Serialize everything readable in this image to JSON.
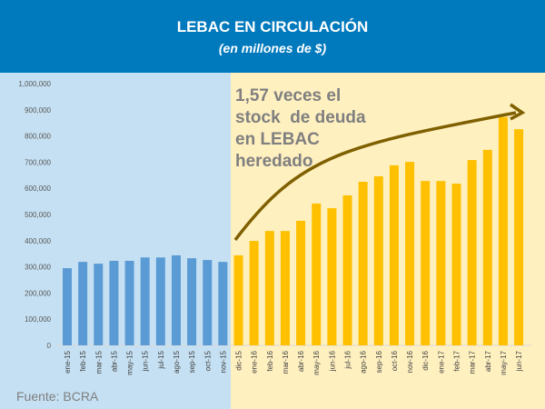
{
  "header": {
    "title": "LEBAC EN CIRCULACIÓN",
    "subtitle": "(en millones de $)"
  },
  "annotation": "1,57 veces el\nstock  de deuda\nen LEBAC\nheredado",
  "source": "Fuente: BCRA",
  "colors": {
    "header": "#0079bd",
    "bg_before": "#c5e0f2",
    "bg_after": "#fff0c0",
    "bar_before": "#5b9bd5",
    "bar_after": "#ffc000",
    "arrow": "#7f6000"
  },
  "chart_data": {
    "type": "bar",
    "title": "LEBAC EN CIRCULACIÓN",
    "subtitle": "(en millones de $)",
    "ylim": [
      0,
      1000000
    ],
    "yticks": [
      "0",
      "100,000",
      "200,000",
      "300,000",
      "400,000",
      "500,000",
      "600,000",
      "700,000",
      "800,000",
      "900,000",
      "1,000,000"
    ],
    "grid": false,
    "categories": [
      "ene-15",
      "feb-15",
      "mar-15",
      "abr-15",
      "may-15",
      "jun-15",
      "jul-15",
      "ago-15",
      "sep-15",
      "oct-15",
      "nov-15",
      "dic-15",
      "ene-16",
      "feb-16",
      "mar-16",
      "abr-16",
      "may-16",
      "jun-16",
      "jul-16",
      "ago-16",
      "sep-16",
      "oct-16",
      "nov-16",
      "dic-16",
      "ene-17",
      "feb-17",
      "mar-17",
      "abr-17",
      "may-17",
      "jun-17"
    ],
    "values": [
      295000,
      319000,
      312000,
      323000,
      323000,
      336000,
      336000,
      344000,
      333000,
      326000,
      319000,
      344000,
      399000,
      437000,
      437000,
      476000,
      542000,
      524000,
      573000,
      625000,
      646000,
      688000,
      701000,
      628000,
      628000,
      618000,
      708000,
      747000,
      872000,
      826000
    ],
    "highlight_from": "dic-15"
  }
}
